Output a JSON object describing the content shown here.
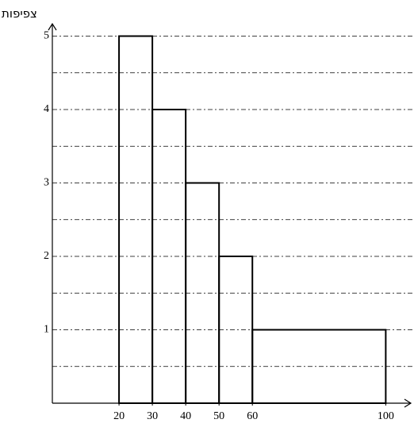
{
  "chart_data": {
    "type": "histogram",
    "y_label": "צפיפות",
    "bins": [
      20,
      30,
      40,
      50,
      60,
      100
    ],
    "values": [
      5,
      4,
      3,
      2,
      1
    ],
    "xlim": [
      0,
      108
    ],
    "xticks": [
      20,
      30,
      40,
      50,
      60,
      100
    ],
    "ylim": [
      0,
      5.2
    ],
    "yticks": [
      1,
      2,
      3,
      4,
      5
    ],
    "minor_yticks": [
      0.5,
      1.5,
      2.5,
      3.5,
      4.5
    ],
    "grid": true,
    "color": "#000000"
  }
}
